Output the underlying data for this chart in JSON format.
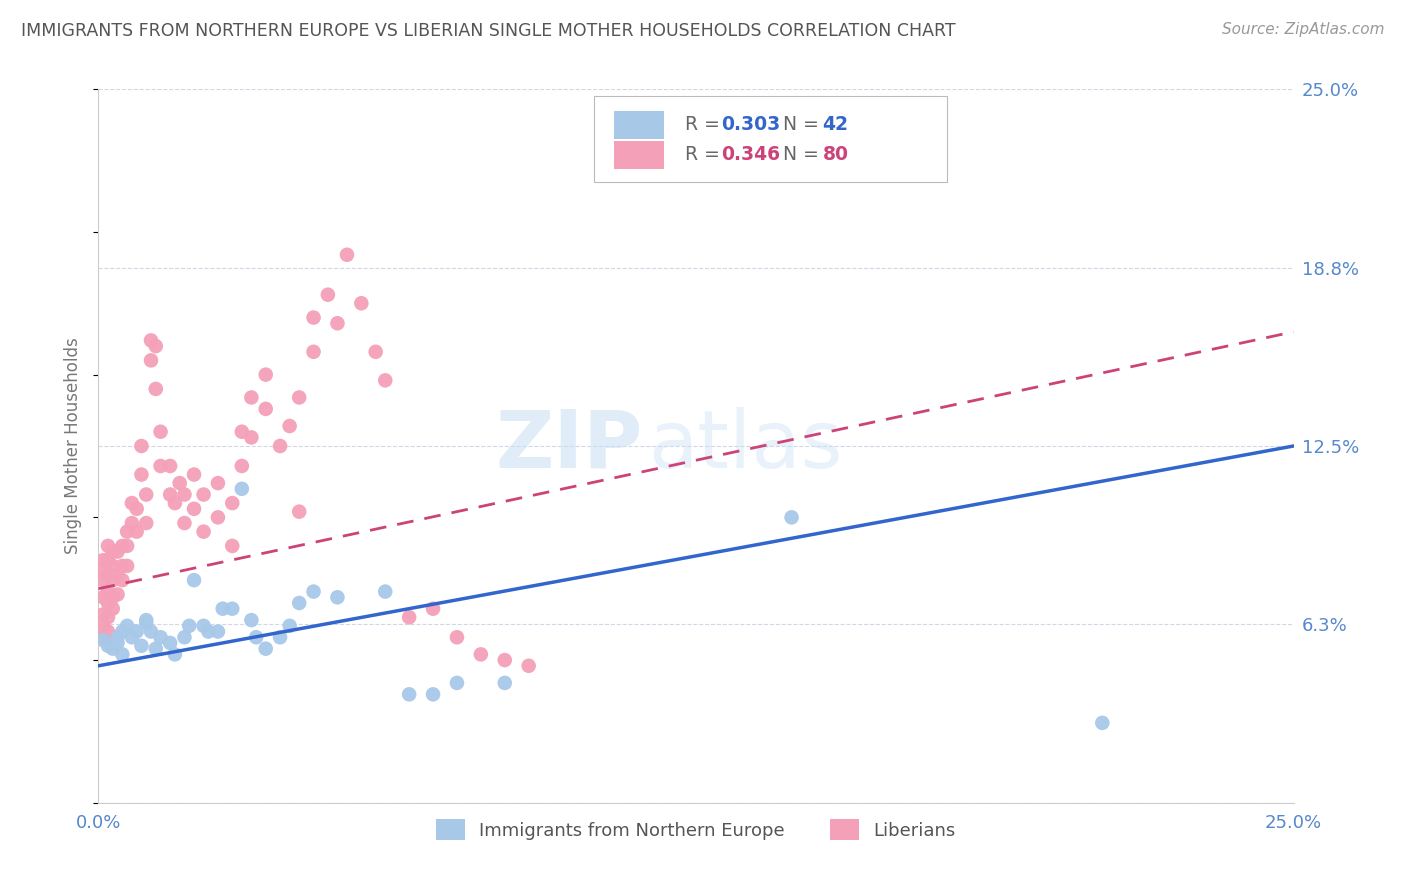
{
  "title": "IMMIGRANTS FROM NORTHERN EUROPE VS LIBERIAN SINGLE MOTHER HOUSEHOLDS CORRELATION CHART",
  "source": "Source: ZipAtlas.com",
  "ylabel": "Single Mother Households",
  "xlim": [
    0.0,
    0.25
  ],
  "ylim": [
    0.0,
    0.25
  ],
  "xtick_values": [
    0.0,
    0.25
  ],
  "xticklabels": [
    "0.0%",
    "25.0%"
  ],
  "ytick_values": [
    0.0,
    0.0625,
    0.125,
    0.1875,
    0.25
  ],
  "ytick_labels": [
    "",
    "6.3%",
    "12.5%",
    "18.8%",
    "25.0%"
  ],
  "blue_color": "#a8c8e8",
  "pink_color": "#f4a0b8",
  "blue_line_color": "#3366cc",
  "pink_line_color": "#cc4477",
  "blue_line_dashed": false,
  "pink_line_dashed": true,
  "legend_blue_label": "Immigrants from Northern Europe",
  "legend_pink_label": "Liberians",
  "R_blue": "0.303",
  "N_blue": "42",
  "R_pink": "0.346",
  "N_pink": "80",
  "blue_R_color": "#3366cc",
  "pink_R_color": "#cc4477",
  "tick_label_color": "#5588cc",
  "blue_scatter": [
    [
      0.001,
      0.057
    ],
    [
      0.002,
      0.055
    ],
    [
      0.003,
      0.054
    ],
    [
      0.004,
      0.056
    ],
    [
      0.004,
      0.058
    ],
    [
      0.005,
      0.06
    ],
    [
      0.005,
      0.052
    ],
    [
      0.006,
      0.062
    ],
    [
      0.007,
      0.058
    ],
    [
      0.008,
      0.06
    ],
    [
      0.009,
      0.055
    ],
    [
      0.01,
      0.064
    ],
    [
      0.01,
      0.063
    ],
    [
      0.011,
      0.06
    ],
    [
      0.012,
      0.054
    ],
    [
      0.013,
      0.058
    ],
    [
      0.015,
      0.056
    ],
    [
      0.016,
      0.052
    ],
    [
      0.018,
      0.058
    ],
    [
      0.019,
      0.062
    ],
    [
      0.02,
      0.078
    ],
    [
      0.022,
      0.062
    ],
    [
      0.023,
      0.06
    ],
    [
      0.025,
      0.06
    ],
    [
      0.026,
      0.068
    ],
    [
      0.028,
      0.068
    ],
    [
      0.03,
      0.11
    ],
    [
      0.032,
      0.064
    ],
    [
      0.033,
      0.058
    ],
    [
      0.035,
      0.054
    ],
    [
      0.038,
      0.058
    ],
    [
      0.04,
      0.062
    ],
    [
      0.042,
      0.07
    ],
    [
      0.045,
      0.074
    ],
    [
      0.05,
      0.072
    ],
    [
      0.06,
      0.074
    ],
    [
      0.065,
      0.038
    ],
    [
      0.07,
      0.038
    ],
    [
      0.075,
      0.042
    ],
    [
      0.085,
      0.042
    ],
    [
      0.145,
      0.1
    ],
    [
      0.21,
      0.028
    ]
  ],
  "pink_scatter": [
    [
      0.001,
      0.058
    ],
    [
      0.001,
      0.062
    ],
    [
      0.001,
      0.066
    ],
    [
      0.001,
      0.072
    ],
    [
      0.001,
      0.078
    ],
    [
      0.001,
      0.082
    ],
    [
      0.001,
      0.085
    ],
    [
      0.002,
      0.06
    ],
    [
      0.002,
      0.065
    ],
    [
      0.002,
      0.07
    ],
    [
      0.002,
      0.074
    ],
    [
      0.002,
      0.08
    ],
    [
      0.002,
      0.085
    ],
    [
      0.002,
      0.09
    ],
    [
      0.003,
      0.068
    ],
    [
      0.003,
      0.072
    ],
    [
      0.003,
      0.078
    ],
    [
      0.003,
      0.083
    ],
    [
      0.003,
      0.088
    ],
    [
      0.004,
      0.073
    ],
    [
      0.004,
      0.08
    ],
    [
      0.004,
      0.088
    ],
    [
      0.005,
      0.078
    ],
    [
      0.005,
      0.083
    ],
    [
      0.005,
      0.09
    ],
    [
      0.006,
      0.083
    ],
    [
      0.006,
      0.09
    ],
    [
      0.006,
      0.095
    ],
    [
      0.007,
      0.098
    ],
    [
      0.007,
      0.105
    ],
    [
      0.008,
      0.095
    ],
    [
      0.008,
      0.103
    ],
    [
      0.009,
      0.115
    ],
    [
      0.009,
      0.125
    ],
    [
      0.01,
      0.098
    ],
    [
      0.01,
      0.108
    ],
    [
      0.011,
      0.155
    ],
    [
      0.011,
      0.162
    ],
    [
      0.012,
      0.145
    ],
    [
      0.012,
      0.16
    ],
    [
      0.013,
      0.118
    ],
    [
      0.013,
      0.13
    ],
    [
      0.015,
      0.108
    ],
    [
      0.015,
      0.118
    ],
    [
      0.016,
      0.105
    ],
    [
      0.017,
      0.112
    ],
    [
      0.018,
      0.098
    ],
    [
      0.018,
      0.108
    ],
    [
      0.02,
      0.103
    ],
    [
      0.02,
      0.115
    ],
    [
      0.022,
      0.095
    ],
    [
      0.022,
      0.108
    ],
    [
      0.025,
      0.1
    ],
    [
      0.025,
      0.112
    ],
    [
      0.028,
      0.105
    ],
    [
      0.028,
      0.09
    ],
    [
      0.03,
      0.118
    ],
    [
      0.03,
      0.13
    ],
    [
      0.032,
      0.128
    ],
    [
      0.032,
      0.142
    ],
    [
      0.035,
      0.138
    ],
    [
      0.035,
      0.15
    ],
    [
      0.038,
      0.125
    ],
    [
      0.04,
      0.132
    ],
    [
      0.042,
      0.142
    ],
    [
      0.042,
      0.102
    ],
    [
      0.045,
      0.158
    ],
    [
      0.045,
      0.17
    ],
    [
      0.048,
      0.178
    ],
    [
      0.05,
      0.168
    ],
    [
      0.052,
      0.192
    ],
    [
      0.055,
      0.175
    ],
    [
      0.058,
      0.158
    ],
    [
      0.06,
      0.148
    ],
    [
      0.065,
      0.065
    ],
    [
      0.07,
      0.068
    ],
    [
      0.075,
      0.058
    ],
    [
      0.08,
      0.052
    ],
    [
      0.085,
      0.05
    ],
    [
      0.09,
      0.048
    ]
  ],
  "blue_trendline": [
    [
      0.0,
      0.048
    ],
    [
      0.25,
      0.125
    ]
  ],
  "pink_trendline": [
    [
      0.0,
      0.075
    ],
    [
      0.25,
      0.165
    ]
  ],
  "watermark_zip": "ZIP",
  "watermark_atlas": "atlas",
  "background_color": "#ffffff",
  "grid_color": "#d0d8e8",
  "axis_color": "#cccccc"
}
